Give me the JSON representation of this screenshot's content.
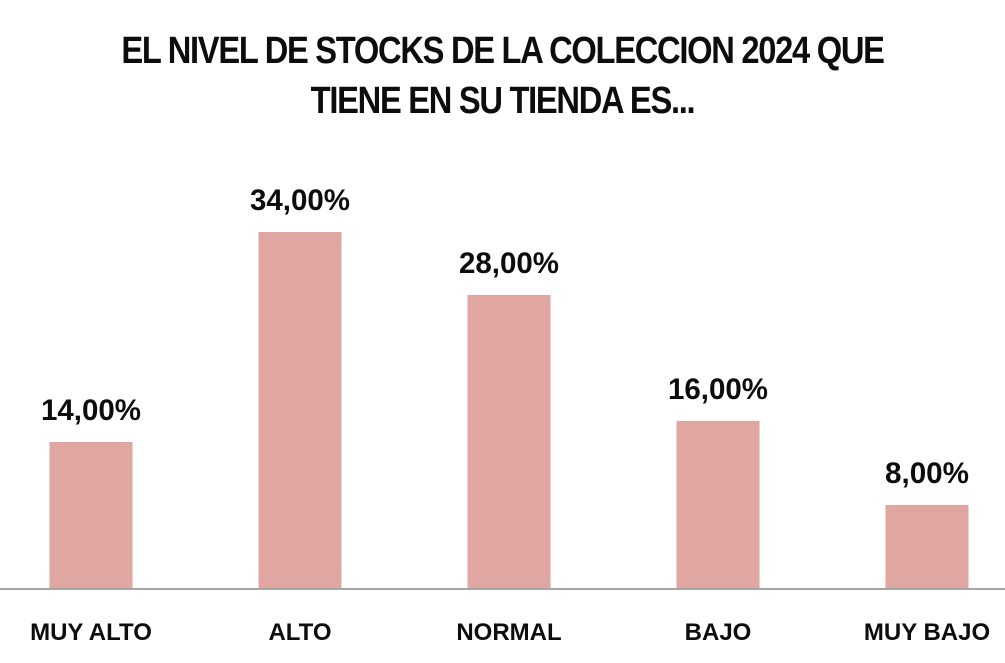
{
  "chart_data": {
    "type": "bar",
    "title": "EL NIVEL DE STOCKS DE LA COLECCION 2024 QUE TIENE EN SU TIENDA ES...",
    "title_lines": [
      "EL NIVEL DE STOCKS DE LA COLECCION 2024 QUE",
      "TIENE EN SU TIENDA ES..."
    ],
    "categories": [
      "MUY ALTO",
      "ALTO",
      "NORMAL",
      "BAJO",
      "MUY BAJO"
    ],
    "values": [
      14.0,
      34.0,
      28.0,
      16.0,
      8.0
    ],
    "value_labels": [
      "14,00%",
      "34,00%",
      "28,00%",
      "16,00%",
      "8,00%"
    ],
    "xlabel": "",
    "ylabel": "",
    "ylim": [
      0,
      34
    ],
    "grid": false,
    "legend": "none",
    "bar_color": "#dfa6a2",
    "axis_color": "#a6a6a6",
    "text_color": "#0d0d0d"
  }
}
